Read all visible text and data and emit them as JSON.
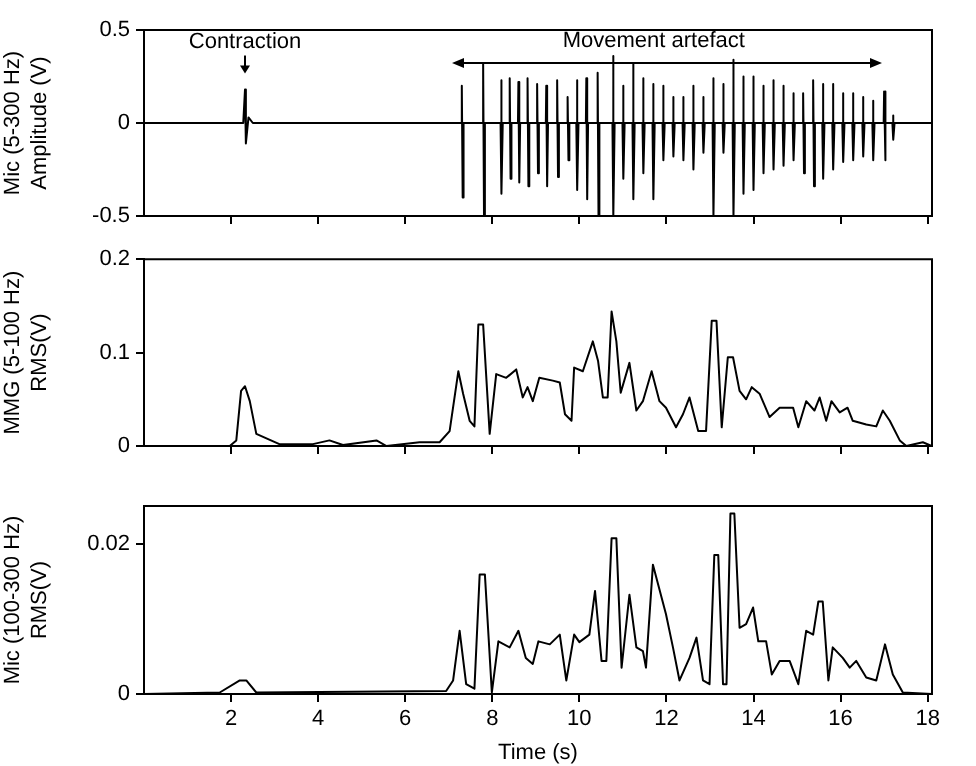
{
  "chart_data": [
    {
      "type": "line",
      "ylabel": "Mic (5-300 Hz)\nAmplitude (V)",
      "xlim": [
        0,
        18.1
      ],
      "xticks": [
        2,
        4,
        6,
        8,
        10,
        12,
        14,
        16,
        18
      ],
      "ylim": [
        -0.5,
        0.5
      ],
      "yticks": [
        -0.5,
        0,
        0.5
      ],
      "tick_labels": "y",
      "grid": false,
      "color": "#000000",
      "annotations": [
        {
          "text": "Contraction",
          "x": 2.32,
          "y": 0.18
        },
        "Movement artefact"
      ],
      "x": [
        0,
        2.28,
        2.32,
        2.34,
        2.4,
        2.5,
        7.29,
        7.3,
        7.32,
        7.34,
        7.78,
        7.79,
        7.81,
        7.83,
        8.19,
        8.2,
        8.22,
        8.24,
        8.39,
        8.4,
        8.42,
        8.44,
        8.59,
        8.6,
        8.62,
        8.64,
        8.8,
        8.81,
        8.83,
        8.85,
        9.02,
        9.03,
        9.05,
        9.07,
        9.23,
        9.24,
        9.26,
        9.28,
        9.48,
        9.49,
        9.51,
        9.53,
        9.72,
        9.73,
        9.75,
        9.77,
        9.93,
        9.94,
        9.96,
        9.98,
        10.15,
        10.16,
        10.18,
        10.2,
        10.41,
        10.42,
        10.44,
        10.46,
        10.76,
        10.77,
        10.79,
        10.81,
        10.99,
        11.0,
        11.02,
        11.04,
        11.22,
        11.23,
        11.25,
        11.27,
        11.45,
        11.46,
        11.48,
        11.5,
        11.68,
        11.69,
        11.71,
        11.73,
        11.91,
        11.92,
        11.94,
        11.96,
        12.14,
        12.15,
        12.17,
        12.19,
        12.37,
        12.38,
        12.4,
        12.42,
        12.6,
        12.61,
        12.63,
        12.65,
        12.83,
        12.84,
        12.86,
        12.88,
        13.06,
        13.07,
        13.09,
        13.11,
        13.29,
        13.3,
        13.32,
        13.34,
        13.52,
        13.53,
        13.55,
        13.57,
        13.75,
        13.76,
        13.78,
        13.8,
        13.98,
        13.99,
        14.01,
        14.03,
        14.21,
        14.22,
        14.24,
        14.26,
        14.44,
        14.45,
        14.47,
        14.49,
        14.67,
        14.68,
        14.7,
        14.72,
        14.9,
        14.91,
        14.93,
        14.95,
        15.13,
        15.14,
        15.16,
        15.18,
        15.36,
        15.37,
        15.39,
        15.41,
        15.58,
        15.59,
        15.61,
        15.63,
        15.81,
        15.82,
        15.84,
        15.86,
        16.04,
        16.05,
        16.07,
        16.09,
        16.27,
        16.28,
        16.3,
        16.32,
        16.5,
        16.51,
        16.53,
        16.55,
        16.73,
        16.74,
        16.76,
        16.78,
        16.99,
        17.0,
        17.02,
        17.04,
        17.19,
        17.2,
        17.22,
        17.24,
        18.1
      ],
      "values": [
        0,
        0,
        0.18,
        -0.11,
        0.03,
        0,
        0,
        0.2,
        -0.4,
        0,
        0,
        0.32,
        -0.5,
        0,
        0,
        0.23,
        -0.38,
        0,
        0,
        0.24,
        -0.3,
        0,
        0,
        0.22,
        -0.32,
        0,
        0,
        0.24,
        -0.34,
        0,
        0,
        0.21,
        -0.27,
        0,
        0,
        0.2,
        -0.34,
        0,
        0,
        0.23,
        -0.29,
        0,
        0,
        0.14,
        -0.2,
        0,
        0,
        0.23,
        -0.36,
        0,
        0,
        0.24,
        -0.41,
        0,
        0,
        0.27,
        -0.5,
        0,
        0,
        0.36,
        -0.5,
        0,
        0,
        0.2,
        -0.3,
        0,
        0,
        0.32,
        -0.41,
        0,
        0,
        0.24,
        -0.27,
        0,
        0,
        0.21,
        -0.41,
        0,
        0,
        0.2,
        -0.2,
        0,
        0,
        0.14,
        -0.18,
        0,
        0,
        0.14,
        -0.2,
        0,
        0,
        0.2,
        -0.25,
        0,
        0,
        0.14,
        -0.16,
        0,
        0,
        0.24,
        -0.5,
        0,
        0,
        0.21,
        -0.16,
        0,
        0,
        0.34,
        -0.5,
        0,
        0,
        0.25,
        -0.38,
        0,
        0,
        0.25,
        -0.36,
        0,
        0,
        0.2,
        -0.27,
        0,
        0,
        0.23,
        -0.25,
        0,
        0,
        0.2,
        -0.23,
        0,
        0,
        0.16,
        -0.2,
        0,
        0,
        0.16,
        -0.27,
        0,
        0,
        0.23,
        -0.34,
        0,
        0,
        0.21,
        -0.3,
        0,
        0,
        0.21,
        -0.25,
        0,
        0,
        0.16,
        -0.21,
        0,
        0,
        0.16,
        -0.2,
        0,
        0,
        0.14,
        -0.18,
        0,
        0,
        0.12,
        -0.2,
        0,
        0,
        0.17,
        -0.2,
        0,
        0,
        0.04,
        -0.09,
        0,
        0
      ]
    },
    {
      "type": "line",
      "ylabel": "MMG (5-100 Hz)\nRMS(V)",
      "xlim": [
        0,
        18.1
      ],
      "xticks": [
        2,
        4,
        6,
        8,
        10,
        12,
        14,
        16,
        18
      ],
      "ylim": [
        0,
        0.2
      ],
      "yticks": [
        0,
        0.1,
        0.2
      ],
      "tick_labels": "y",
      "grid": false,
      "color": "#000000",
      "x": [
        0,
        1.97,
        2.12,
        2.23,
        2.32,
        2.43,
        2.58,
        3.11,
        3.88,
        4.26,
        4.57,
        5.34,
        5.57,
        6.33,
        6.79,
        7.02,
        7.22,
        7.33,
        7.48,
        7.59,
        7.68,
        7.79,
        7.94,
        8.09,
        8.32,
        8.55,
        8.7,
        8.81,
        8.93,
        9.08,
        9.39,
        9.55,
        9.67,
        9.82,
        9.88,
        10.08,
        10.31,
        10.43,
        10.54,
        10.65,
        10.74,
        10.85,
        10.95,
        11.15,
        11.31,
        11.46,
        11.66,
        11.84,
        11.99,
        12.22,
        12.38,
        12.53,
        12.73,
        12.91,
        13.04,
        13.15,
        13.27,
        13.41,
        13.53,
        13.68,
        13.83,
        13.96,
        14.14,
        14.37,
        14.6,
        14.91,
        15.03,
        15.21,
        15.4,
        15.52,
        15.67,
        15.79,
        15.98,
        16.16,
        16.28,
        16.59,
        16.82,
        16.97,
        17.13,
        17.36,
        17.51,
        17.89,
        18.09
      ],
      "values": [
        0,
        0,
        0.006,
        0.059,
        0.064,
        0.048,
        0.013,
        0.002,
        0.002,
        0.006,
        0.001,
        0.006,
        0,
        0.004,
        0.004,
        0.016,
        0.08,
        0.056,
        0.027,
        0.021,
        0.13,
        0.13,
        0.013,
        0.077,
        0.073,
        0.082,
        0.052,
        0.063,
        0.048,
        0.073,
        0.07,
        0.068,
        0.034,
        0.027,
        0.084,
        0.08,
        0.112,
        0.091,
        0.052,
        0.052,
        0.144,
        0.112,
        0.057,
        0.089,
        0.038,
        0.048,
        0.08,
        0.048,
        0.041,
        0.02,
        0.034,
        0.052,
        0.016,
        0.016,
        0.134,
        0.134,
        0.02,
        0.095,
        0.095,
        0.059,
        0.05,
        0.063,
        0.056,
        0.031,
        0.041,
        0.041,
        0.02,
        0.048,
        0.038,
        0.052,
        0.027,
        0.048,
        0.036,
        0.041,
        0.027,
        0.023,
        0.021,
        0.038,
        0.027,
        0.006,
        0,
        0.004,
        0
      ]
    },
    {
      "type": "line",
      "xlabel": "Time (s)",
      "ylabel": "Mic (100-300 Hz)\nRMS(V)",
      "xlim": [
        0,
        18.1
      ],
      "xticks": [
        2,
        4,
        6,
        8,
        10,
        12,
        14,
        16,
        18
      ],
      "ylim": [
        0,
        0.025
      ],
      "yticks": [
        0,
        0.02
      ],
      "grid": false,
      "color": "#000000",
      "x": [
        0,
        1.74,
        2.2,
        2.35,
        2.58,
        6.94,
        7.1,
        7.25,
        7.4,
        7.59,
        7.71,
        7.83,
        7.99,
        8.14,
        8.4,
        8.6,
        8.77,
        8.93,
        9.06,
        9.32,
        9.55,
        9.7,
        9.88,
        10.0,
        10.23,
        10.36,
        10.51,
        10.62,
        10.74,
        10.85,
        10.97,
        11.15,
        11.31,
        11.46,
        11.53,
        11.69,
        11.99,
        12.15,
        12.3,
        12.53,
        12.69,
        12.84,
        12.99,
        13.1,
        13.19,
        13.3,
        13.38,
        13.47,
        13.56,
        13.68,
        13.83,
        13.99,
        14.11,
        14.29,
        14.42,
        14.6,
        14.83,
        15.03,
        15.21,
        15.37,
        15.49,
        15.59,
        15.72,
        15.82,
        16.05,
        16.21,
        16.36,
        16.59,
        16.82,
        17.02,
        17.2,
        17.43,
        18.09
      ],
      "values": [
        0,
        0.0002,
        0.0018,
        0.0018,
        0.0002,
        0.0004,
        0.0018,
        0.0084,
        0.0013,
        0.0007,
        0.0159,
        0.0159,
        0.0002,
        0.007,
        0.0062,
        0.0084,
        0.0048,
        0.004,
        0.007,
        0.0066,
        0.0079,
        0.0018,
        0.0079,
        0.0069,
        0.0079,
        0.0137,
        0.0044,
        0.0044,
        0.0207,
        0.0207,
        0.0035,
        0.0132,
        0.0062,
        0.0057,
        0.0035,
        0.0172,
        0.0106,
        0.0062,
        0.0018,
        0.0048,
        0.0075,
        0.0018,
        0.0013,
        0.0185,
        0.0185,
        0.0013,
        0.0013,
        0.024,
        0.024,
        0.0088,
        0.0093,
        0.0115,
        0.007,
        0.007,
        0.0026,
        0.0044,
        0.0044,
        0.0013,
        0.0084,
        0.0079,
        0.0123,
        0.0123,
        0.0018,
        0.0062,
        0.0048,
        0.0035,
        0.0044,
        0.0022,
        0.0018,
        0.0066,
        0.0026,
        0.0002,
        0
      ]
    }
  ]
}
